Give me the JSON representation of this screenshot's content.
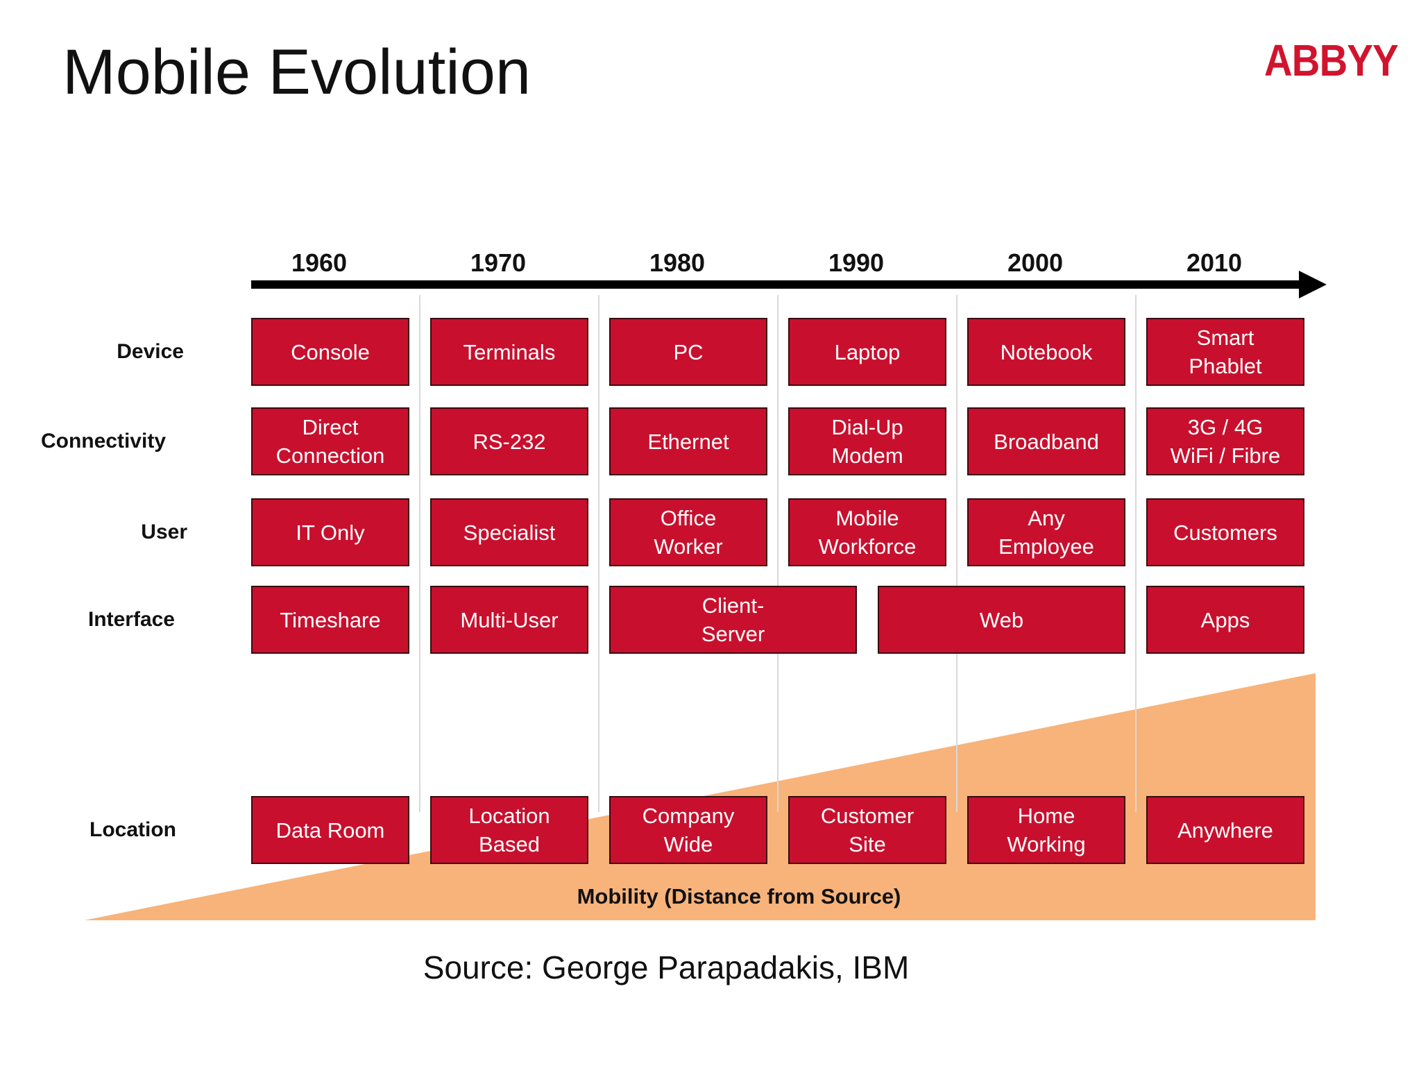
{
  "title": "Mobile Evolution",
  "logo": {
    "text": "ABBYY",
    "color": "#d1142e"
  },
  "years": [
    "1960",
    "1970",
    "1980",
    "1990",
    "2000",
    "2010"
  ],
  "rows": [
    {
      "label": "Device",
      "cells": [
        {
          "text": "Console",
          "span": 1
        },
        {
          "text": "Terminals",
          "span": 1
        },
        {
          "text": "PC",
          "span": 1
        },
        {
          "text": "Laptop",
          "span": 1
        },
        {
          "text": "Notebook",
          "span": 1
        },
        {
          "text": "Smart\nPhablet",
          "span": 1
        }
      ]
    },
    {
      "label": "Connectivity",
      "cells": [
        {
          "text": "Direct\nConnection",
          "span": 1
        },
        {
          "text": "RS-232",
          "span": 1
        },
        {
          "text": "Ethernet",
          "span": 1
        },
        {
          "text": "Dial-Up\nModem",
          "span": 1
        },
        {
          "text": "Broadband",
          "span": 1
        },
        {
          "text": "3G / 4G\nWiFi / Fibre",
          "span": 1
        }
      ]
    },
    {
      "label": "User",
      "cells": [
        {
          "text": "IT Only",
          "span": 1
        },
        {
          "text": "Specialist",
          "span": 1
        },
        {
          "text": "Office\nWorker",
          "span": 1
        },
        {
          "text": "Mobile\nWorkforce",
          "span": 1
        },
        {
          "text": "Any\nEmployee",
          "span": 1
        },
        {
          "text": "Customers",
          "span": 1
        }
      ]
    },
    {
      "label": "Interface",
      "cells": [
        {
          "text": "Timeshare",
          "span": 1
        },
        {
          "text": "Multi-User",
          "span": 1
        },
        {
          "text": "Client-\nServer",
          "span": 1.5
        },
        {
          "text": "Web",
          "span": 1.5
        },
        {
          "text": "Apps",
          "span": 1
        }
      ]
    },
    {
      "label": "Location",
      "cells": [
        {
          "text": "Data Room",
          "span": 1
        },
        {
          "text": "Location\nBased",
          "span": 1
        },
        {
          "text": "Company\nWide",
          "span": 1
        },
        {
          "text": "Customer\nSite",
          "span": 1
        },
        {
          "text": "Home\nWorking",
          "span": 1
        },
        {
          "text": "Anywhere",
          "span": 1
        }
      ]
    }
  ],
  "mobility_label": "Mobility (Distance from Source)",
  "source": "Source: George Parapadakis, IBM",
  "colors": {
    "cell_fill": "#c8102e",
    "cell_border": "#3a0a0f",
    "cell_text": "#ffffff",
    "wedge_fill": "#f7b37a",
    "divider": "#d9d9d9",
    "arrow": "#000000"
  }
}
